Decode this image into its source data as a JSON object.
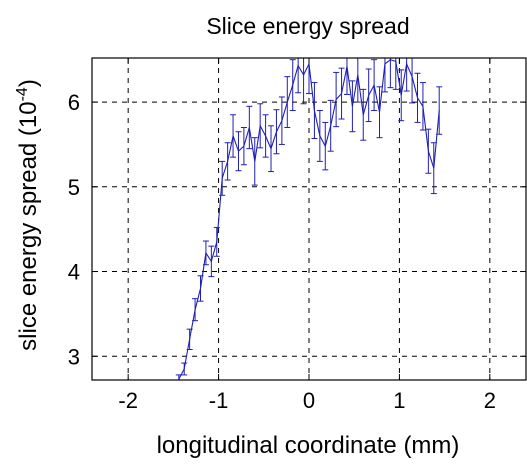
{
  "chart_data": {
    "type": "line",
    "title": "Slice energy spread",
    "xlabel": "longitudinal coordinate (mm)",
    "ylabel_main": "slice energy spread (10",
    "ylabel_sup": "-4",
    "ylabel_tail": ")",
    "xlim": [
      -2.4,
      2.4
    ],
    "ylim": [
      2.72,
      6.52
    ],
    "xticks": [
      -2,
      -1,
      0,
      1,
      2
    ],
    "yticks": [
      3,
      4,
      5,
      6
    ],
    "xtick_labels": [
      "-2",
      "-1",
      "0",
      "1",
      "2"
    ],
    "ytick_labels": [
      "3",
      "4",
      "5",
      "6"
    ],
    "grid": true,
    "color": "#1f1fb4",
    "series": [
      {
        "x": [
          -1.44,
          -1.38,
          -1.32,
          -1.26,
          -1.2,
          -1.14,
          -1.08,
          -1.02,
          -0.96,
          -0.9,
          -0.84,
          -0.78,
          -0.72,
          -0.66,
          -0.6,
          -0.54,
          -0.48,
          -0.42,
          -0.36,
          -0.3,
          -0.24,
          -0.18,
          -0.12,
          -0.06,
          0.0,
          0.06,
          0.12,
          0.18,
          0.24,
          0.3,
          0.36,
          0.42,
          0.48,
          0.54,
          0.6,
          0.66,
          0.72,
          0.78,
          0.84,
          0.9,
          0.96,
          1.02,
          1.08,
          1.14,
          1.2,
          1.26,
          1.32,
          1.38,
          1.44
        ],
        "y": [
          2.73,
          2.85,
          3.2,
          3.55,
          3.8,
          4.22,
          4.12,
          4.35,
          5.1,
          5.3,
          5.6,
          5.42,
          5.48,
          5.7,
          5.3,
          5.72,
          5.6,
          5.45,
          5.65,
          5.78,
          6.0,
          6.2,
          6.43,
          6.32,
          6.45,
          5.9,
          5.6,
          5.48,
          5.72,
          6.03,
          6.1,
          6.42,
          5.95,
          6.32,
          5.85,
          6.08,
          6.2,
          5.88,
          6.45,
          6.5,
          6.48,
          6.08,
          6.45,
          6.3,
          6.05,
          5.95,
          5.42,
          5.22,
          5.9
        ],
        "err": [
          0.05,
          0.07,
          0.12,
          0.13,
          0.15,
          0.14,
          0.18,
          0.17,
          0.2,
          0.22,
          0.25,
          0.23,
          0.22,
          0.25,
          0.28,
          0.26,
          0.25,
          0.27,
          0.26,
          0.28,
          0.3,
          0.3,
          0.32,
          0.34,
          0.35,
          0.33,
          0.3,
          0.28,
          0.3,
          0.32,
          0.3,
          0.33,
          0.3,
          0.32,
          0.3,
          0.31,
          0.3,
          0.3,
          0.33,
          0.33,
          0.33,
          0.3,
          0.32,
          0.31,
          0.29,
          0.28,
          0.26,
          0.3,
          0.28
        ]
      }
    ]
  }
}
